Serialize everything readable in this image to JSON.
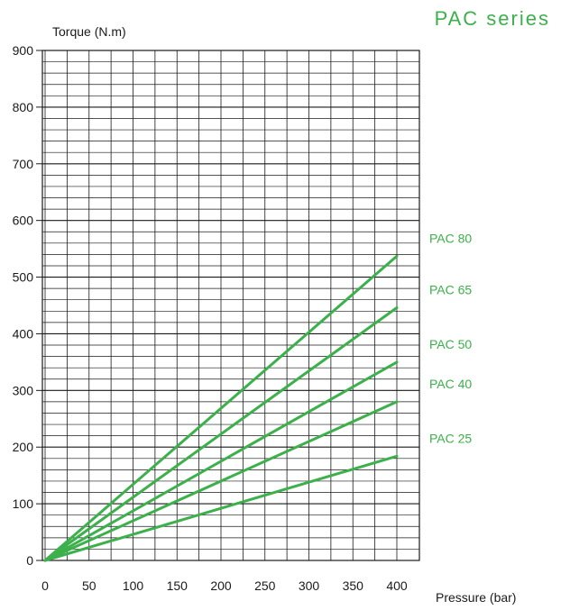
{
  "header": {
    "title": "PAC series"
  },
  "chart_data": {
    "type": "line",
    "title": "PAC series",
    "xlabel": "Pressure (bar)",
    "ylabel": "Torque (N.m)",
    "xlim": [
      0,
      400
    ],
    "ylim": [
      0,
      900
    ],
    "x_ticks": [
      0,
      50,
      100,
      150,
      200,
      250,
      300,
      350,
      400
    ],
    "y_ticks": [
      0,
      100,
      200,
      300,
      400,
      500,
      600,
      700,
      800,
      900
    ],
    "grid": true,
    "legend": "right, inline labels at line ends",
    "line_color": "#3cb04b",
    "series": [
      {
        "name": "PAC 80",
        "x": [
          0,
          400
        ],
        "y": [
          0,
          537
        ]
      },
      {
        "name": "PAC 65",
        "x": [
          0,
          400
        ],
        "y": [
          0,
          446
        ]
      },
      {
        "name": "PAC 50",
        "x": [
          0,
          400
        ],
        "y": [
          0,
          350
        ]
      },
      {
        "name": "PAC 40",
        "x": [
          0,
          400
        ],
        "y": [
          0,
          280
        ]
      },
      {
        "name": "PAC 25",
        "x": [
          0,
          400
        ],
        "y": [
          0,
          184
        ]
      }
    ]
  }
}
